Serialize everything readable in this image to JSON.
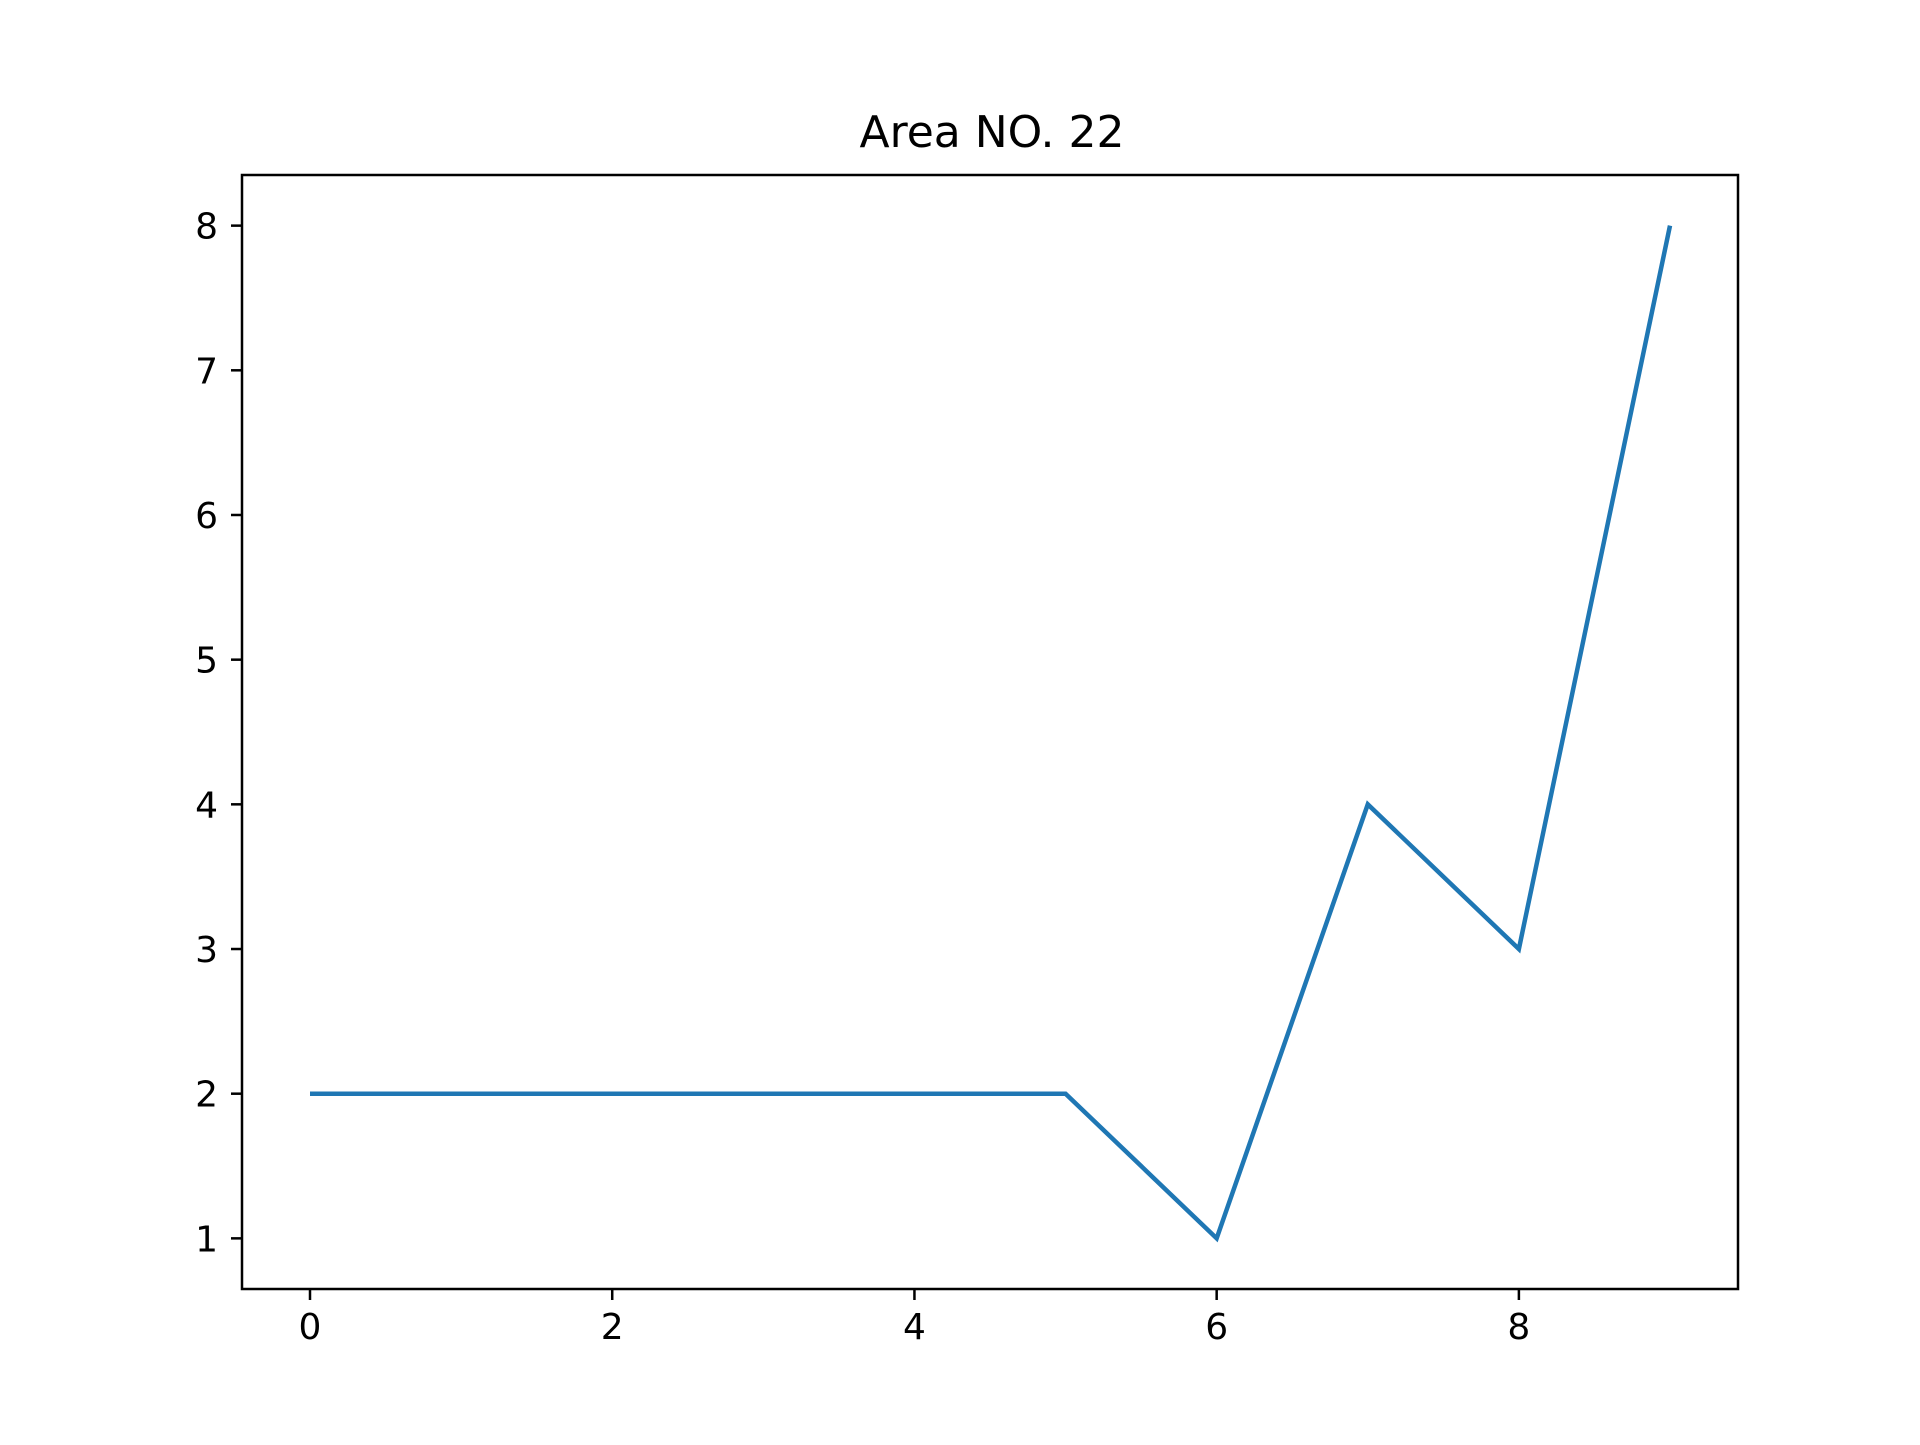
{
  "chart_data": {
    "type": "line",
    "title": "Area NO. 22",
    "xlabel": "",
    "ylabel": "",
    "x": [
      0,
      1,
      2,
      3,
      4,
      5,
      6,
      7,
      8,
      9
    ],
    "series": [
      {
        "values": [
          2,
          2,
          2,
          2,
          2,
          2,
          1,
          4,
          3,
          8
        ],
        "color": "#1f77b4"
      }
    ],
    "xlim": [
      -0.45,
      9.45
    ],
    "ylim": [
      0.65,
      8.35
    ],
    "xticks": [
      0,
      2,
      4,
      6,
      8
    ],
    "yticks": [
      1,
      2,
      3,
      4,
      5,
      6,
      7,
      8
    ],
    "grid": false,
    "legend": "none"
  }
}
